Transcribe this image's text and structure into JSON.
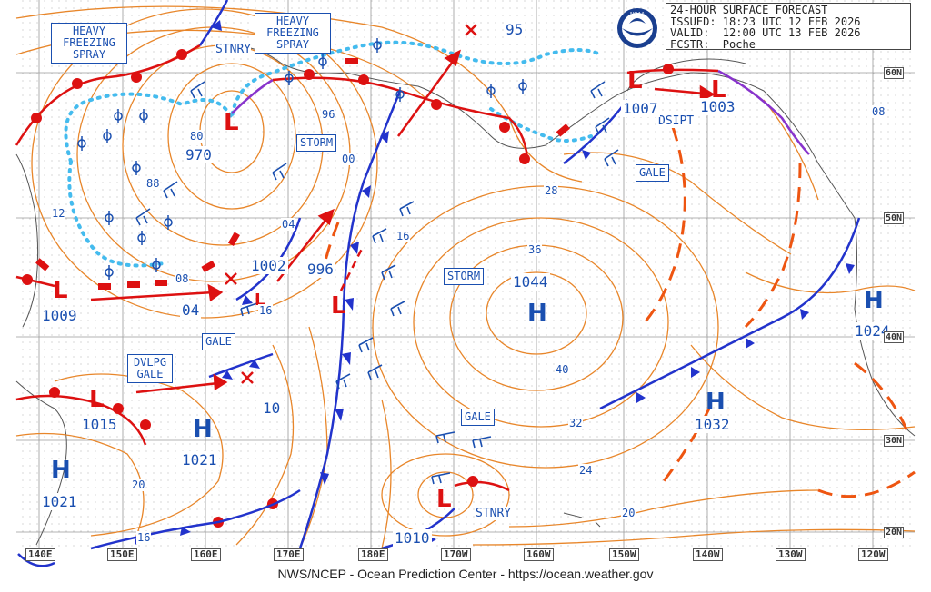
{
  "header": {
    "title": "24-HOUR SURFACE FORECAST",
    "issued": "ISSUED: 18:23 UTC 12 FEB 2026",
    "valid": "VALID:  12:00 UTC 13 FEB 2026",
    "forecaster": "FCSTR:  Poche"
  },
  "logo_text": "NOAA",
  "footer": "NWS/NCEP - Ocean Prediction Center - https://ocean.weather.gov",
  "longitude_labels": [
    "140E",
    "150E",
    "160E",
    "170E",
    "180E",
    "170W",
    "160W",
    "150W",
    "140W",
    "130W",
    "120W"
  ],
  "latitude_labels": [
    "60N",
    "50N",
    "40N",
    "30N",
    "20N"
  ],
  "warning_boxes": {
    "heavy_freezing_spray_w": "HEAVY FREEZING SPRAY",
    "heavy_freezing_spray_c": "HEAVY FREEZING SPRAY",
    "storm_bering": "STORM",
    "storm_c": "STORM",
    "gale_gulf": "GALE",
    "gale_w": "GALE",
    "dvlpg_gale": "DVLPG GALE",
    "gale_s": "GALE"
  },
  "front_labels": {
    "stnry_n": "STNRY",
    "stnry_s": "STNRY",
    "dsipt": "DSIPT"
  },
  "centers": {
    "high_letter": "H",
    "low_letter": "L",
    "low_970": "970",
    "low_1002": "1002",
    "low_996": "996",
    "low_1009": "1009",
    "low_1015": "1015",
    "low_1007": "1007",
    "low_1003": "1003",
    "low_1010": "1010",
    "high_1044": "1044",
    "high_1032": "1032",
    "high_1024": "1024",
    "high_1021_a": "1021",
    "high_1021_b": "1021"
  },
  "isobar_labels": {
    "i95": "95",
    "i96": "96",
    "i80": "80",
    "i88": "88",
    "i00": "00",
    "i04_a": "04",
    "i04_b": "04",
    "i08_a": "08",
    "i08_b": "08",
    "i12": "12",
    "i16_a": "16",
    "i16_b": "16",
    "i16_c": "16",
    "i10": "10",
    "i20_a": "20",
    "i20_b": "20",
    "i24": "24",
    "i28": "28",
    "i32": "32",
    "i36": "36",
    "i40": "40"
  },
  "colors": {
    "isobar": "#e8862a",
    "cold_front": "#2233cc",
    "warm_front": "#dd1111",
    "occluded": "#8833cc",
    "freezing_spray": "#44bbee",
    "wind_barb": "#1a4fb0",
    "grid": "#9a9a9a",
    "land": "#555555"
  }
}
